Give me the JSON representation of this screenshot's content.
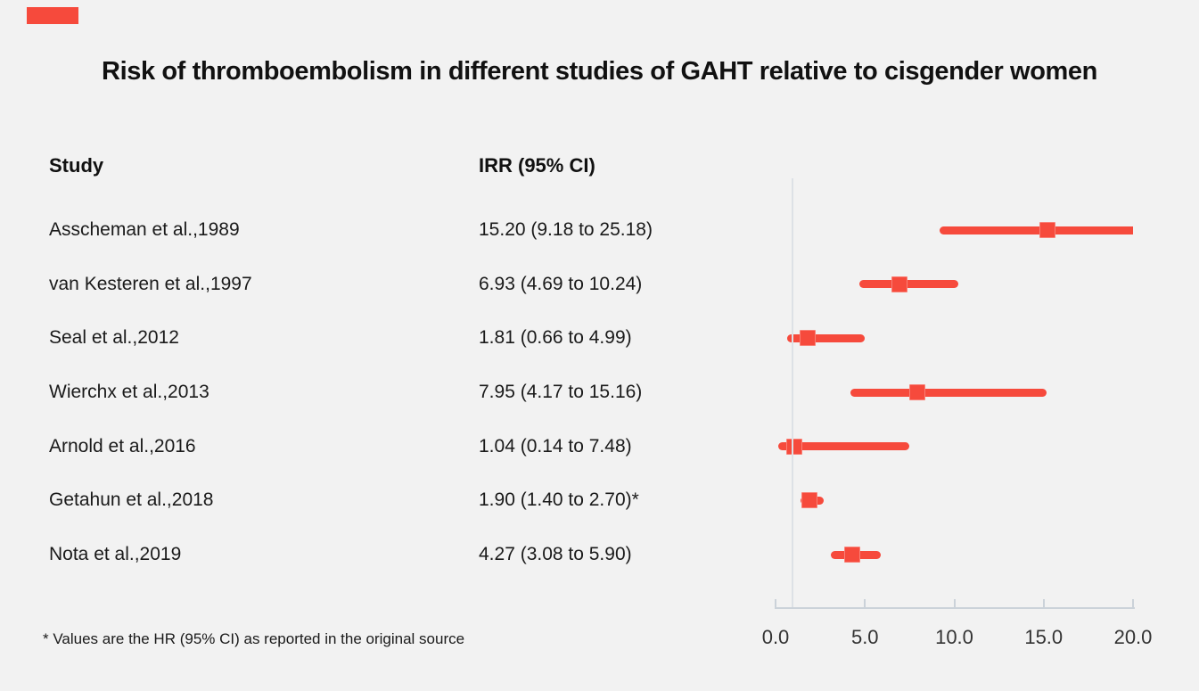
{
  "page": {
    "background": "#f2f2f2"
  },
  "brand": {
    "logo_block_color": "#f64a3c"
  },
  "title": "Risk of thromboembolism in different studies of GAHT relative to cisgender women",
  "table": {
    "study_header": "Study",
    "irr_header": "IRR (95% CI)"
  },
  "footnote": "* Values are the HR (95% CI) as reported in the original source",
  "colors": {
    "accent_red": "#f64a3c",
    "reference_line": "#dde1e6",
    "axis_line": "#cbd2d9",
    "text": "#1a1a1a",
    "tick_label": "#333333"
  },
  "chart_data": {
    "type": "scatter",
    "subtype": "forest-plot",
    "title": "Risk of thromboembolism in different studies of GAHT relative to cisgender women",
    "xlabel": "",
    "ylabel": "",
    "xlim": [
      0,
      20
    ],
    "x_ticks": [
      0,
      5,
      10,
      15,
      20
    ],
    "x_tick_labels": [
      "0.0",
      "5.0",
      "10.0",
      "15.0",
      "20.0"
    ],
    "reference_line_value": 1.0,
    "grid": false,
    "legend": "none",
    "studies": [
      {
        "label": "Asscheman et al.,1989",
        "irr_text": "15.20 (9.18 to 25.18)",
        "value": 15.2,
        "lo": 9.18,
        "hi": 25.18
      },
      {
        "label": "van Kesteren et al.,1997",
        "irr_text": "6.93 (4.69 to 10.24)",
        "value": 6.93,
        "lo": 4.69,
        "hi": 10.24
      },
      {
        "label": "Seal et al.,2012",
        "irr_text": "1.81 (0.66 to 4.99)",
        "value": 1.81,
        "lo": 0.66,
        "hi": 4.99
      },
      {
        "label": "Wierchx et al.,2013",
        "irr_text": "7.95 (4.17 to 15.16)",
        "value": 7.95,
        "lo": 4.17,
        "hi": 15.16
      },
      {
        "label": "Arnold et al.,2016",
        "irr_text": "1.04 (0.14 to 7.48)",
        "value": 1.04,
        "lo": 0.14,
        "hi": 7.48
      },
      {
        "label": "Getahun et al.,2018",
        "irr_text": "1.90 (1.40 to 2.70)*",
        "value": 1.9,
        "lo": 1.4,
        "hi": 2.7
      },
      {
        "label": "Nota et al.,2019",
        "irr_text": "4.27 (3.08 to 5.90)",
        "value": 4.27,
        "lo": 3.08,
        "hi": 5.9
      }
    ]
  }
}
